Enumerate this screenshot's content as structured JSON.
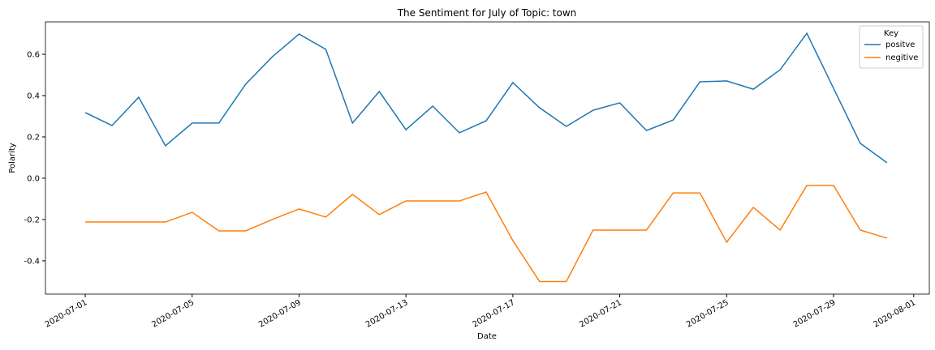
{
  "chart_data": {
    "type": "line",
    "title": "The Sentiment for July of Topic: town",
    "x_label": "Date",
    "y_label": "Polarity",
    "x": [
      "2020-07-01",
      "2020-07-02",
      "2020-07-03",
      "2020-07-04",
      "2020-07-05",
      "2020-07-06",
      "2020-07-07",
      "2020-07-08",
      "2020-07-09",
      "2020-07-10",
      "2020-07-11",
      "2020-07-12",
      "2020-07-13",
      "2020-07-14",
      "2020-07-15",
      "2020-07-16",
      "2020-07-17",
      "2020-07-18",
      "2020-07-19",
      "2020-07-20",
      "2020-07-21",
      "2020-07-22",
      "2020-07-23",
      "2020-07-24",
      "2020-07-25",
      "2020-07-26",
      "2020-07-27",
      "2020-07-28",
      "2020-07-29",
      "2020-07-30",
      "2020-07-31"
    ],
    "series": [
      {
        "name": "positve",
        "color": "#1f77b4",
        "values": [
          0.318,
          0.255,
          0.392,
          0.157,
          0.267,
          0.267,
          0.455,
          0.588,
          0.698,
          0.624,
          0.267,
          0.42,
          0.235,
          0.349,
          0.22,
          0.278,
          0.463,
          0.341,
          0.251,
          0.329,
          0.365,
          0.231,
          0.282,
          0.467,
          0.471,
          0.431,
          0.525,
          0.702,
          0.435,
          0.169,
          0.075
        ]
      },
      {
        "name": "negitive",
        "color": "#ff7f0e",
        "values": [
          -0.212,
          -0.212,
          -0.212,
          -0.212,
          -0.165,
          -0.255,
          -0.255,
          -0.2,
          -0.149,
          -0.188,
          -0.078,
          -0.176,
          -0.11,
          -0.11,
          -0.11,
          -0.067,
          -0.302,
          -0.5,
          -0.5,
          -0.251,
          -0.251,
          -0.251,
          -0.071,
          -0.071,
          -0.31,
          -0.141,
          -0.251,
          -0.035,
          -0.035,
          -0.251,
          -0.29
        ]
      }
    ],
    "xlim": [
      "2020-06-29T12:15:00Z",
      "2020-08-01T14:00:00Z"
    ],
    "xticks": [
      "2020-07-01",
      "2020-07-05",
      "2020-07-09",
      "2020-07-13",
      "2020-07-17",
      "2020-07-21",
      "2020-07-25",
      "2020-07-29",
      "2020-08-01"
    ],
    "ylim": [
      -0.561,
      0.757
    ],
    "yticks": [
      -0.4,
      -0.2,
      {
        "value": 0,
        "label": "0.0"
      },
      0.2,
      0.4,
      0.6
    ],
    "legend_title": "Key",
    "legend_position": "upper right"
  }
}
